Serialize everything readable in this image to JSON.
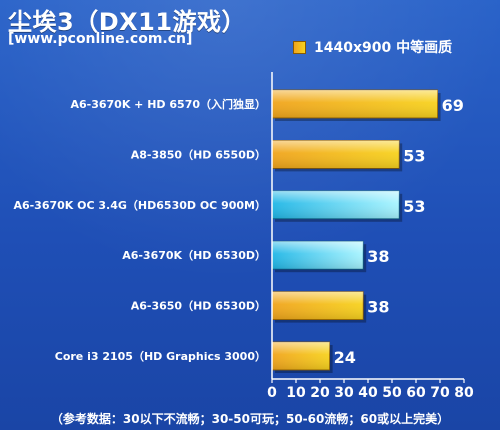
{
  "title": "尘埃3（DX11游戏）",
  "source": "[www.pconline.com.cn]",
  "legend": {
    "label": "1440x900 中等画质"
  },
  "footer": "（参考数据：30以下不流畅；30-50可玩；50-60流畅；60或以上完美）",
  "colors": {
    "orange_start": "#f0a41c",
    "orange_end": "#f7d21e",
    "cyan_start": "#1fb6e6",
    "cyan_end": "#a8f4ff",
    "background": "#1f4fb6",
    "text": "#ffffff"
  },
  "chart_data": {
    "type": "bar",
    "orientation": "horizontal",
    "categories": [
      "A6-3670K + HD 6570（入门独显）",
      "A8-3850（HD 6550D）",
      "A6-3670K OC 3.4G（HD6530D  OC 900M）",
      "A6-3670K（HD 6530D）",
      "A6-3650（HD 6530D）",
      "Core i3 2105（HD Graphics 3000）"
    ],
    "values": [
      69,
      53,
      53,
      38,
      38,
      24
    ],
    "bar_colors": [
      "orange",
      "orange",
      "cyan",
      "cyan",
      "orange",
      "orange"
    ],
    "series": [
      {
        "name": "1440x900 中等画质",
        "values": [
          69,
          53,
          53,
          38,
          38,
          24
        ]
      }
    ],
    "xlim": [
      0,
      80
    ],
    "xticks": [
      0,
      10,
      20,
      30,
      40,
      50,
      60,
      70,
      80
    ],
    "grid": false,
    "legend_position": "top-right"
  }
}
